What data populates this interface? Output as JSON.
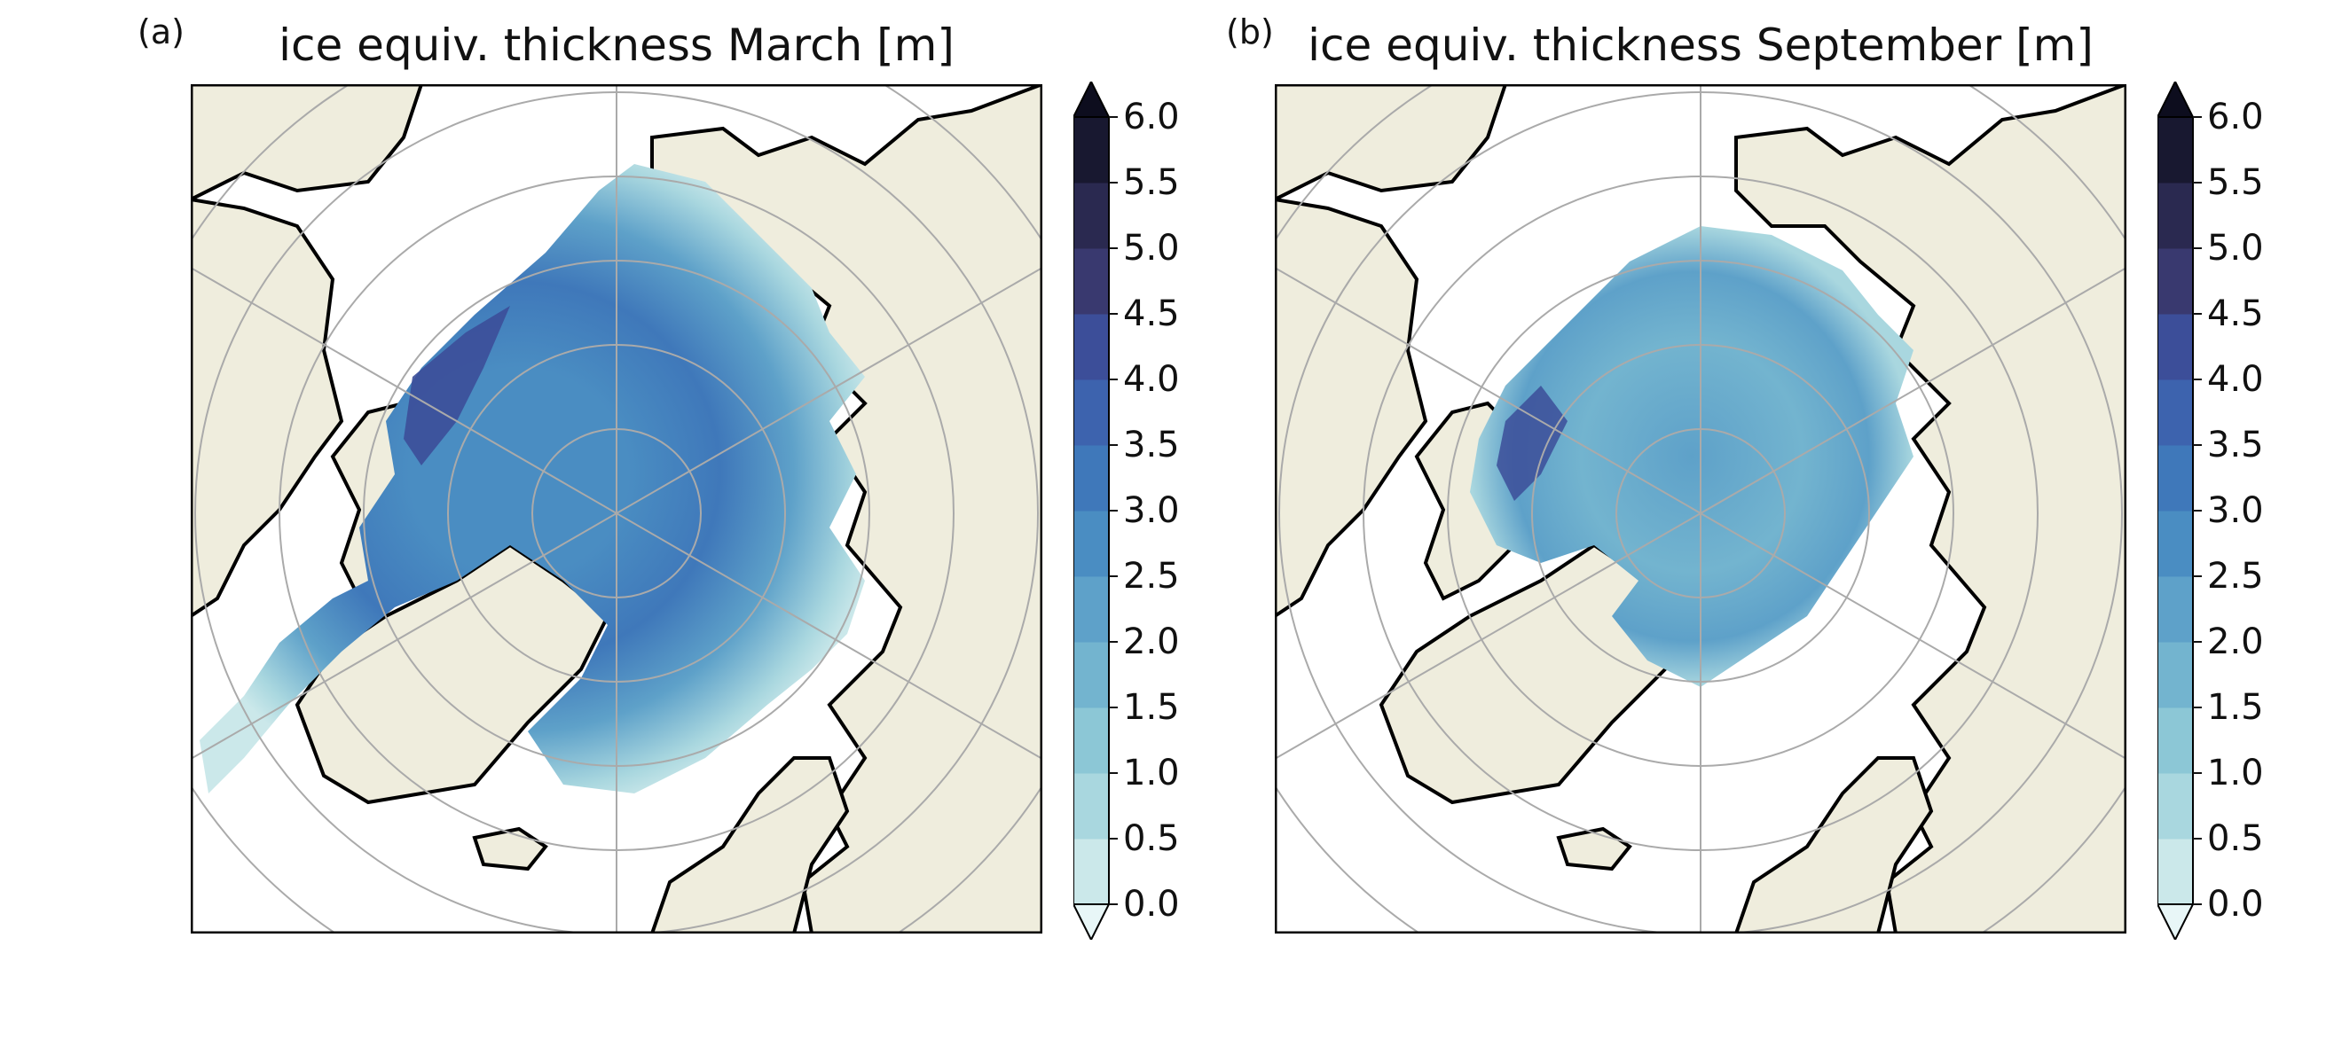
{
  "panels": [
    {
      "id": "a",
      "label": "(a)",
      "title": "ice equiv. thickness March [m]"
    },
    {
      "id": "b",
      "label": "(b)",
      "title": "ice equiv. thickness September [m]"
    }
  ],
  "colorbar": {
    "ticks": [
      "6.0",
      "5.5",
      "5.0",
      "4.5",
      "4.0",
      "3.5",
      "3.0",
      "2.5",
      "2.0",
      "1.5",
      "1.0",
      "0.5",
      "0.0"
    ],
    "levels": [
      0.0,
      0.5,
      1.0,
      1.5,
      2.0,
      2.5,
      3.0,
      3.5,
      4.0,
      4.5,
      5.0,
      5.5,
      6.0
    ],
    "colors": [
      "#cbe8ea",
      "#a9d7df",
      "#8cc7d6",
      "#73b4cf",
      "#5ea1c9",
      "#4a8dc2",
      "#3f78ba",
      "#3d63ae",
      "#3c4e99",
      "#39396f",
      "#2a2950",
      "#181830"
    ],
    "extend_over_color": "#0d0d1e",
    "extend_under_color": "#e8f6f7",
    "extend": "both"
  },
  "map_style": {
    "projection": "north-polar-stereographic",
    "land_color": "#efeddd",
    "ocean_color": "#ffffff",
    "grid_color": "#aaaaaa",
    "coast_color": "#000000",
    "gridlines": true
  }
}
